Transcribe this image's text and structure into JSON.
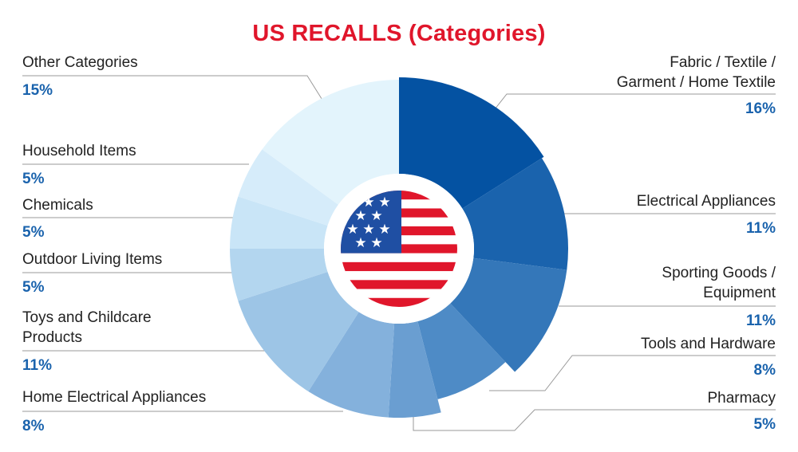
{
  "chart_data": {
    "type": "pie",
    "title": "US RECALLS (Categories)",
    "slices": [
      {
        "label": "Fabric / Textile / Garment / Home Textile",
        "label_lines": [
          "Fabric / Textile /",
          "Garment / Home Textile"
        ],
        "value": 16,
        "value_label": "16%",
        "color": "#0452a2"
      },
      {
        "label": "Electrical Appliances",
        "label_lines": [
          "Electrical Appliances"
        ],
        "value": 11,
        "value_label": "11%",
        "color": "#1a63ad"
      },
      {
        "label": "Sporting Goods / Equipment",
        "label_lines": [
          "Sporting Goods /",
          "Equipment"
        ],
        "value": 11,
        "value_label": "11%",
        "color": "#3477b9"
      },
      {
        "label": "Tools and Hardware",
        "label_lines": [
          "Tools and Hardware"
        ],
        "value": 8,
        "value_label": "8%",
        "color": "#4e8bc6"
      },
      {
        "label": "Pharmacy",
        "label_lines": [
          "Pharmacy"
        ],
        "value": 5,
        "value_label": "5%",
        "color": "#6a9ed1"
      },
      {
        "label": "Home Electrical Appliances",
        "label_lines": [
          "Home Electrical Appliances"
        ],
        "value": 8,
        "value_label": "8%",
        "color": "#84b1dc"
      },
      {
        "label": "Toys and Childcare Products",
        "label_lines": [
          "Toys and Childcare",
          "Products"
        ],
        "value": 11,
        "value_label": "11%",
        "color": "#9dc5e6"
      },
      {
        "label": "Outdoor Living Items",
        "label_lines": [
          "Outdoor Living Items"
        ],
        "value": 5,
        "value_label": "5%",
        "color": "#b3d6ef"
      },
      {
        "label": "Chemicals",
        "label_lines": [
          "Chemicals"
        ],
        "value": 5,
        "value_label": "5%",
        "color": "#c9e5f7"
      },
      {
        "label": "Household Items",
        "label_lines": [
          "Household Items"
        ],
        "value": 5,
        "value_label": "5%",
        "color": "#d6ecfa"
      },
      {
        "label": "Other Categories",
        "label_lines": [
          "Other Categories"
        ],
        "value": 15,
        "value_label": "15%",
        "color": "#e3f4fc"
      }
    ],
    "center_icon": "us-flag-icon"
  }
}
